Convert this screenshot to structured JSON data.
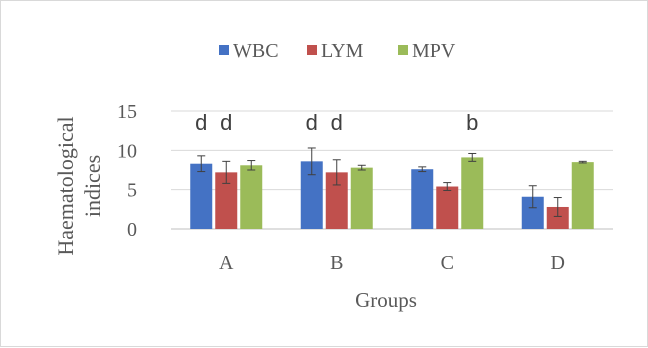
{
  "chart_data": {
    "type": "bar",
    "title": "",
    "xlabel": "Groups",
    "ylabel": "Haematological indices",
    "categories": [
      "A",
      "B",
      "C",
      "D"
    ],
    "series": [
      {
        "name": "WBC",
        "color": "#4472c4",
        "values": [
          8.3,
          8.6,
          7.6,
          4.1
        ],
        "errors": [
          1.0,
          1.7,
          0.3,
          1.4
        ]
      },
      {
        "name": "LYM",
        "color": "#c0504d",
        "values": [
          7.2,
          7.2,
          5.4,
          2.8
        ],
        "errors": [
          1.4,
          1.6,
          0.5,
          1.2
        ]
      },
      {
        "name": "MPV",
        "color": "#9bbb59",
        "values": [
          8.1,
          7.8,
          9.1,
          8.5
        ],
        "errors": [
          0.6,
          0.3,
          0.5,
          0.1
        ]
      }
    ],
    "annotations": [
      {
        "category": "A",
        "series": "WBC",
        "text": "d"
      },
      {
        "category": "A",
        "series": "LYM",
        "text": "d"
      },
      {
        "category": "B",
        "series": "WBC",
        "text": "d"
      },
      {
        "category": "B",
        "series": "LYM",
        "text": "d"
      },
      {
        "category": "C",
        "series": "MPV",
        "text": "b"
      }
    ],
    "ylim": [
      0,
      15
    ],
    "yticks": [
      0,
      5,
      10,
      15
    ],
    "grid": true,
    "legend": "top-center"
  }
}
